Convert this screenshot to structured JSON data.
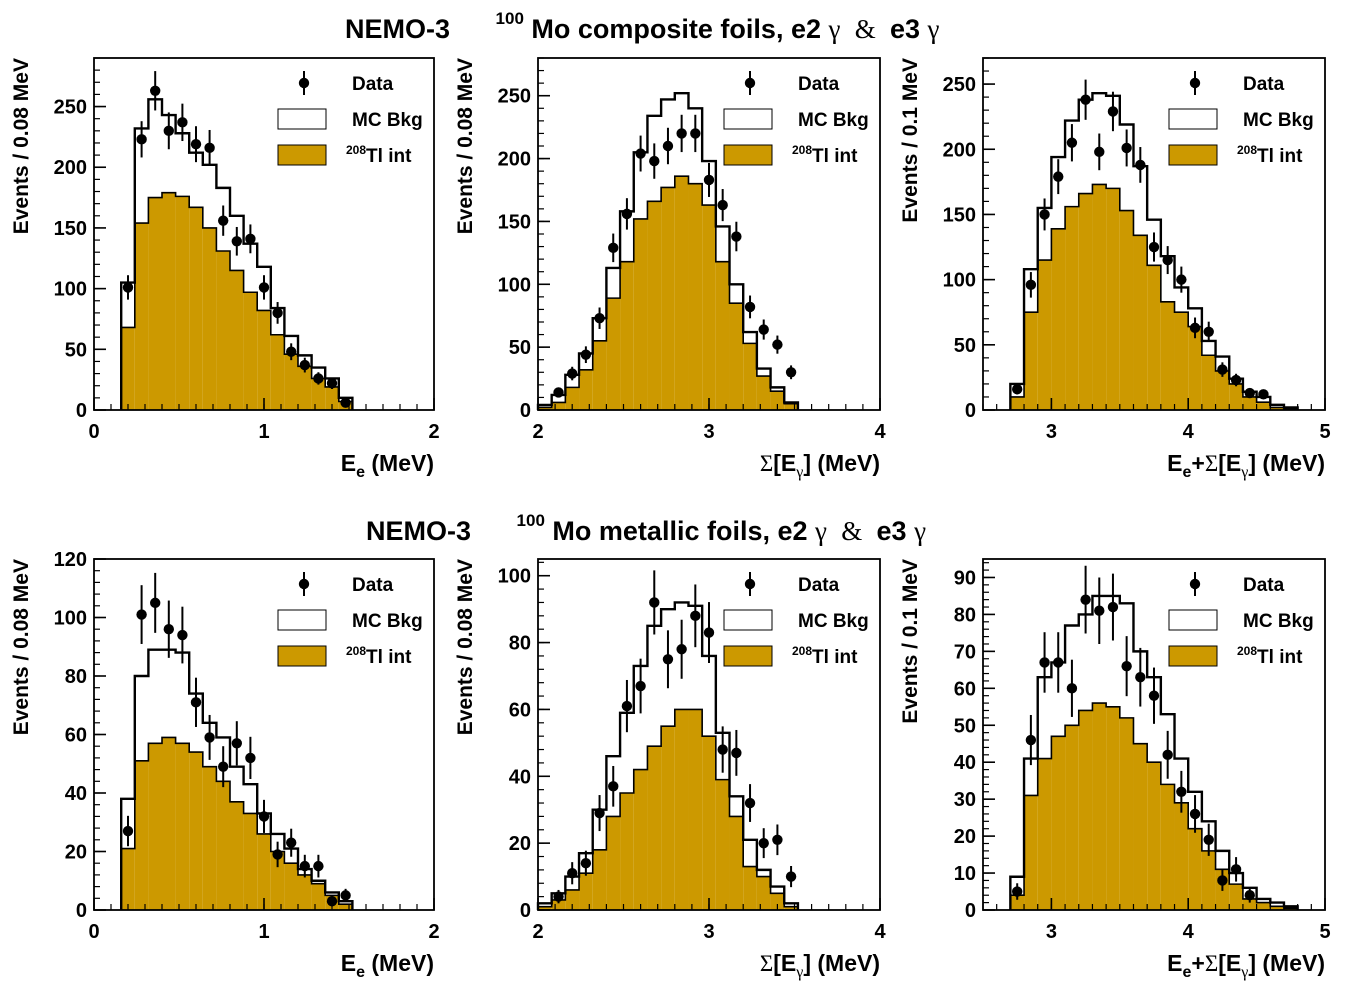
{
  "colors": {
    "tl208_fill": "#cc9900",
    "mc_fill": "#ffffff",
    "line": "#000000",
    "data": "#000000"
  },
  "rows": [
    {
      "title": {
        "left": "NEMO-3",
        "sup": "100",
        "right_pre": "Mo composite foils, e2",
        "gamma": "γ",
        "amp": " & ",
        "right_mid": "e3",
        "gamma2": "γ"
      }
    },
    {
      "title": {
        "left": "NEMO-3",
        "sup": "100",
        "right_pre": "Mo metallic foils, e2",
        "gamma": "γ",
        "amp": " & ",
        "right_mid": "e3",
        "gamma2": "γ"
      }
    }
  ],
  "legend": {
    "data": "Data",
    "mc": "MC Bkg",
    "tl_sup": "208",
    "tl": "Tl int"
  },
  "chart_data": [
    {
      "type": "bar",
      "panel": "composite-ee",
      "xlabel": {
        "main": "E",
        "sub": "e",
        "unit": " (MeV)"
      },
      "ylabel": "Events / 0.08 MeV",
      "xlim": [
        0,
        2
      ],
      "ylim": [
        0,
        290
      ],
      "xticks": [
        0,
        1,
        2
      ],
      "yticks": [
        0,
        50,
        100,
        150,
        200,
        250
      ],
      "bins": [
        0.16,
        0.24,
        0.32,
        0.4,
        0.48,
        0.56,
        0.64,
        0.72,
        0.8,
        0.88,
        0.96,
        1.04,
        1.12,
        1.2,
        1.28,
        1.36,
        1.44,
        1.52
      ],
      "mc_total": [
        105,
        232,
        256,
        243,
        228,
        212,
        202,
        183,
        160,
        137,
        118,
        84,
        61,
        45,
        35,
        26,
        10
      ],
      "tl_int": [
        68,
        154,
        175,
        179,
        176,
        167,
        150,
        131,
        115,
        97,
        82,
        62,
        46,
        36,
        26,
        19,
        7
      ],
      "data_x": [
        0.2,
        0.28,
        0.36,
        0.44,
        0.52,
        0.6,
        0.68,
        0.76,
        0.84,
        0.92,
        1.0,
        1.08,
        1.16,
        1.24,
        1.32,
        1.4,
        1.48
      ],
      "data_y": [
        101,
        223,
        263,
        230,
        237,
        219,
        216,
        156,
        139,
        141,
        101,
        80,
        48,
        37,
        26,
        22,
        6
      ]
    },
    {
      "type": "bar",
      "panel": "composite-sumeg",
      "xlabel": {
        "sigma": "Σ",
        "main": "[E",
        "sub": "γ",
        "close": "]",
        "unit": " (MeV)"
      },
      "ylabel": "Events / 0.08 MeV",
      "xlim": [
        2,
        4
      ],
      "ylim": [
        0,
        280
      ],
      "xticks": [
        2,
        3,
        4
      ],
      "yticks": [
        0,
        50,
        100,
        150,
        200,
        250
      ],
      "bins": [
        2.0,
        2.08,
        2.16,
        2.24,
        2.32,
        2.4,
        2.48,
        2.56,
        2.64,
        2.72,
        2.8,
        2.88,
        2.96,
        3.04,
        3.12,
        3.2,
        3.28,
        3.36,
        3.44,
        3.52
      ],
      "mc_total": [
        4,
        12,
        28,
        45,
        73,
        113,
        158,
        205,
        234,
        247,
        252,
        240,
        198,
        146,
        100,
        62,
        33,
        18,
        6
      ],
      "tl_int": [
        2,
        6,
        18,
        32,
        55,
        89,
        118,
        152,
        166,
        177,
        186,
        180,
        163,
        118,
        85,
        53,
        27,
        15,
        5
      ],
      "data_x": [
        2.12,
        2.2,
        2.28,
        2.36,
        2.44,
        2.52,
        2.6,
        2.68,
        2.76,
        2.84,
        2.92,
        3.0,
        3.08,
        3.16,
        3.24,
        3.32,
        3.4,
        3.48
      ],
      "data_y": [
        14,
        29,
        44,
        73,
        129,
        156,
        204,
        198,
        210,
        220,
        220,
        183,
        163,
        138,
        82,
        64,
        52,
        30
      ]
    },
    {
      "type": "bar",
      "panel": "composite-total",
      "xlabel": {
        "main": "E",
        "sub": "e",
        "mid": "+",
        "sigma": "Σ",
        "main2": "[E",
        "sub2": "γ",
        "close": "]",
        "unit": " (MeV)"
      },
      "ylabel": "Events / 0.1 MeV",
      "xlim": [
        2.5,
        5
      ],
      "ylim": [
        0,
        270
      ],
      "xticks": [
        3,
        4,
        5
      ],
      "yticks": [
        0,
        50,
        100,
        150,
        200,
        250
      ],
      "bins": [
        2.7,
        2.8,
        2.9,
        3.0,
        3.1,
        3.2,
        3.3,
        3.4,
        3.5,
        3.6,
        3.7,
        3.8,
        3.9,
        4.0,
        4.1,
        4.2,
        4.3,
        4.4,
        4.5,
        4.6,
        4.7,
        4.8
      ],
      "mc_total": [
        20,
        108,
        155,
        194,
        222,
        238,
        243,
        241,
        219,
        187,
        146,
        118,
        94,
        78,
        53,
        41,
        24,
        14,
        10,
        4,
        2
      ],
      "tl_int": [
        10,
        75,
        115,
        139,
        156,
        166,
        173,
        170,
        153,
        134,
        111,
        83,
        75,
        64,
        42,
        30,
        20,
        10,
        6,
        2,
        1
      ],
      "data_x": [
        2.75,
        2.85,
        2.95,
        3.05,
        3.15,
        3.25,
        3.35,
        3.45,
        3.55,
        3.65,
        3.75,
        3.85,
        3.95,
        4.05,
        4.15,
        4.25,
        4.35,
        4.45,
        4.55
      ],
      "data_y": [
        16,
        96,
        150,
        179,
        205,
        238,
        198,
        229,
        201,
        188,
        125,
        115,
        100,
        63,
        60,
        31,
        23,
        13,
        12
      ]
    },
    {
      "type": "bar",
      "panel": "metallic-ee",
      "xlabel": {
        "main": "E",
        "sub": "e",
        "unit": " (MeV)"
      },
      "ylabel": "Events / 0.08 MeV",
      "xlim": [
        0,
        2
      ],
      "ylim": [
        0,
        120
      ],
      "xticks": [
        0,
        1,
        2
      ],
      "yticks": [
        0,
        20,
        40,
        60,
        80,
        100,
        120
      ],
      "bins": [
        0.16,
        0.24,
        0.32,
        0.4,
        0.48,
        0.56,
        0.64,
        0.72,
        0.8,
        0.88,
        0.96,
        1.04,
        1.12,
        1.2,
        1.28,
        1.36,
        1.44,
        1.52
      ],
      "mc_total": [
        38,
        80,
        89,
        89,
        88,
        74,
        64,
        59,
        49,
        43,
        33,
        26,
        21,
        14,
        10,
        6,
        3
      ],
      "tl_int": [
        21,
        51,
        57,
        59,
        57,
        54,
        49,
        44,
        37,
        33,
        26,
        20,
        16,
        12,
        9,
        5,
        2
      ],
      "data_x": [
        0.2,
        0.28,
        0.36,
        0.44,
        0.52,
        0.6,
        0.68,
        0.76,
        0.84,
        0.92,
        1.0,
        1.08,
        1.16,
        1.24,
        1.32,
        1.4,
        1.48
      ],
      "data_y": [
        27,
        101,
        105,
        96,
        94,
        71,
        59,
        49,
        57,
        52,
        32,
        19,
        23,
        15,
        15,
        3,
        5
      ]
    },
    {
      "type": "bar",
      "panel": "metallic-sumeg",
      "xlabel": {
        "sigma": "Σ",
        "main": "[E",
        "sub": "γ",
        "close": "]",
        "unit": " (MeV)"
      },
      "ylabel": "Events / 0.08 MeV",
      "xlim": [
        2,
        4
      ],
      "ylim": [
        0,
        105
      ],
      "xticks": [
        2,
        3,
        4
      ],
      "yticks": [
        0,
        20,
        40,
        60,
        80,
        100
      ],
      "bins": [
        2.0,
        2.08,
        2.16,
        2.24,
        2.32,
        2.4,
        2.48,
        2.56,
        2.64,
        2.72,
        2.8,
        2.88,
        2.96,
        3.04,
        3.12,
        3.2,
        3.28,
        3.36,
        3.44,
        3.52
      ],
      "mc_total": [
        2,
        5,
        10,
        17,
        30,
        46,
        59,
        73,
        85,
        90,
        92,
        91,
        76,
        53,
        34,
        21,
        12,
        7,
        2
      ],
      "tl_int": [
        1,
        3,
        6,
        11,
        18,
        28,
        35,
        42,
        49,
        55,
        60,
        60,
        52,
        39,
        28,
        13,
        10,
        5,
        1
      ],
      "data_x": [
        2.12,
        2.2,
        2.28,
        2.36,
        2.44,
        2.52,
        2.6,
        2.68,
        2.76,
        2.84,
        2.92,
        3.0,
        3.08,
        3.16,
        3.24,
        3.32,
        3.4,
        3.48
      ],
      "data_y": [
        4,
        11,
        14,
        29,
        37,
        61,
        67,
        92,
        75,
        78,
        88,
        83,
        48,
        47,
        32,
        20,
        21,
        10
      ]
    },
    {
      "type": "bar",
      "panel": "metallic-total",
      "xlabel": {
        "main": "E",
        "sub": "e",
        "mid": "+",
        "sigma": "Σ",
        "main2": "[E",
        "sub2": "γ",
        "close": "]",
        "unit": " (MeV)"
      },
      "ylabel": "Events / 0.1 MeV",
      "xlim": [
        2.5,
        5
      ],
      "ylim": [
        0,
        95
      ],
      "xticks": [
        3,
        4,
        5
      ],
      "yticks": [
        0,
        10,
        20,
        30,
        40,
        50,
        60,
        70,
        80,
        90
      ],
      "bins": [
        2.7,
        2.8,
        2.9,
        3.0,
        3.1,
        3.2,
        3.3,
        3.4,
        3.5,
        3.6,
        3.7,
        3.8,
        3.9,
        4.0,
        4.1,
        4.2,
        4.3,
        4.4,
        4.5,
        4.6,
        4.7,
        4.8
      ],
      "mc_total": [
        9,
        41,
        63,
        67,
        77,
        80,
        85,
        85,
        83,
        70,
        63,
        53,
        41,
        32,
        24,
        16,
        10,
        6,
        3,
        2,
        1
      ],
      "tl_int": [
        4,
        31,
        41,
        47,
        50,
        54,
        56,
        55,
        52,
        45,
        40,
        34,
        29,
        22,
        16,
        11,
        7,
        3,
        2,
        1,
        0.5
      ],
      "data_x": [
        2.75,
        2.85,
        2.95,
        3.05,
        3.15,
        3.25,
        3.35,
        3.45,
        3.55,
        3.65,
        3.75,
        3.85,
        3.95,
        4.05,
        4.15,
        4.25,
        4.35,
        4.45
      ],
      "data_y": [
        5,
        46,
        67,
        67,
        60,
        84,
        81,
        82,
        66,
        63,
        58,
        42,
        32,
        26,
        19,
        8,
        11,
        4
      ]
    }
  ]
}
